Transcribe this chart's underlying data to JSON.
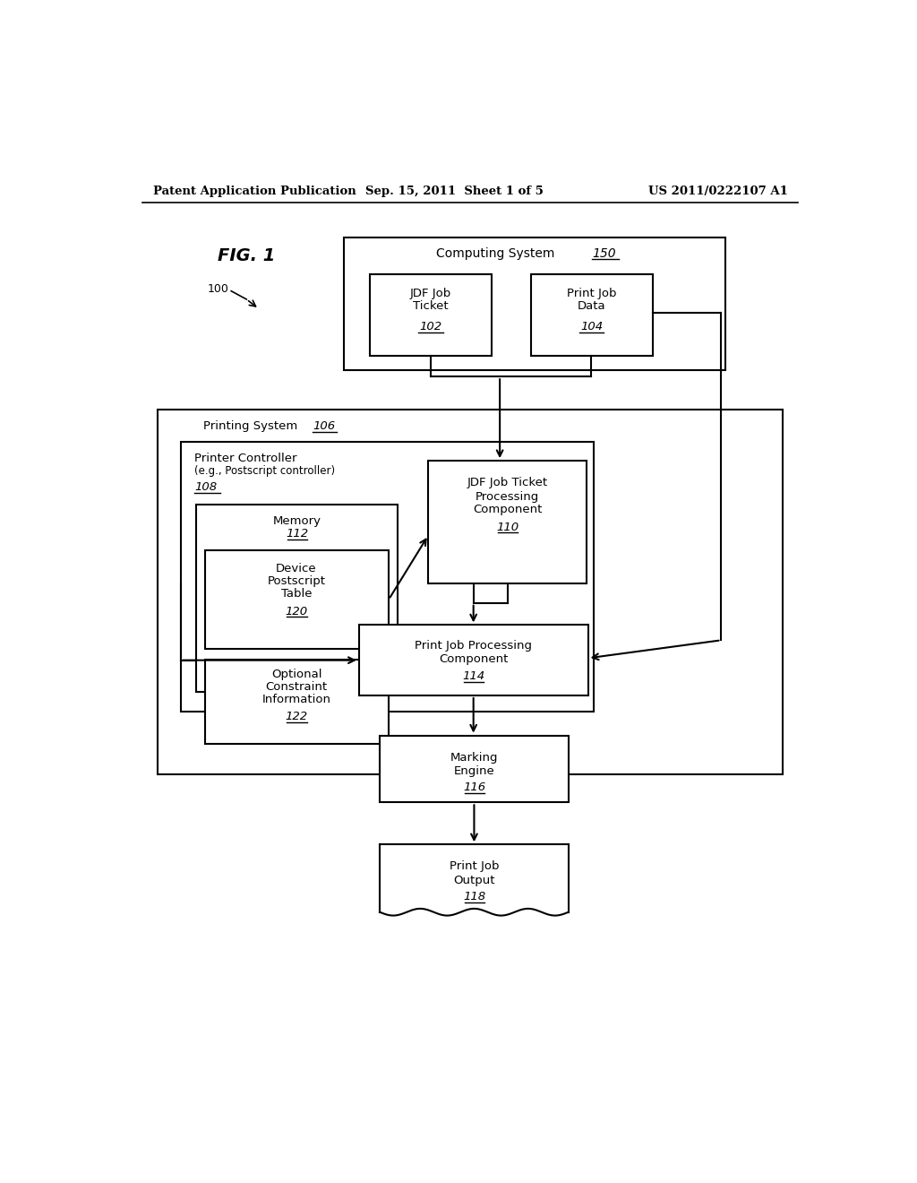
{
  "header_left": "Patent Application Publication",
  "header_center": "Sep. 15, 2011  Sheet 1 of 5",
  "header_right": "US 2011/0222107 A1",
  "fig_label": "FIG. 1",
  "background_color": "#ffffff"
}
